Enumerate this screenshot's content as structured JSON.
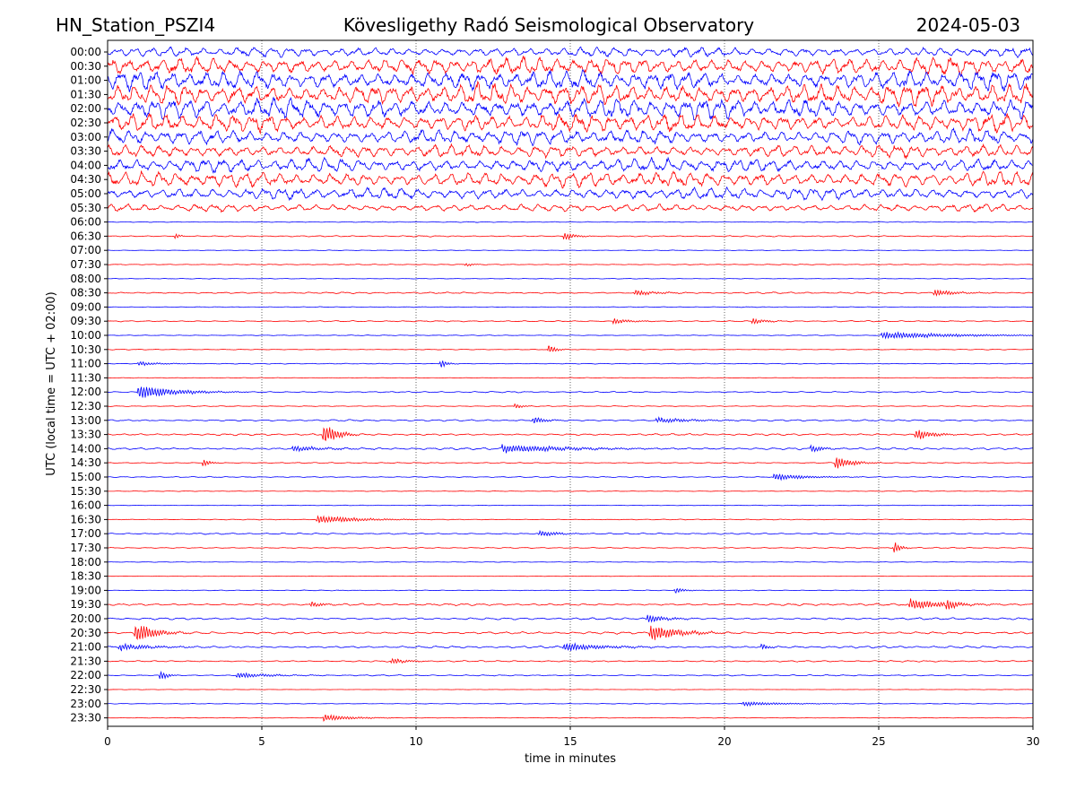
{
  "header": {
    "station": "HN_Station_PSZI4",
    "title": "Kövesligethy Radó Seismological Observatory",
    "date": "2024-05-03"
  },
  "chart_data": {
    "type": "line",
    "chart_kind": "helicorder",
    "xlabel": "time in minutes",
    "ylabel": "UTC (local time = UTC + 02:00)",
    "xlim": [
      0,
      30
    ],
    "x_ticks": [
      0,
      5,
      10,
      15,
      20,
      25,
      30
    ],
    "x_tick_labels": [
      "0",
      "5",
      "10",
      "15",
      "20",
      "25",
      "30"
    ],
    "vertical_gridlines": [
      5,
      10,
      15,
      20,
      25
    ],
    "grid_style": "dotted vertical",
    "row_colors": [
      "#0000ff",
      "#ff0000"
    ],
    "rows": [
      {
        "label": "00:00",
        "amplitude": 0.9,
        "events": []
      },
      {
        "label": "00:30",
        "amplitude": 1.6,
        "events": []
      },
      {
        "label": "01:00",
        "amplitude": 1.8,
        "events": []
      },
      {
        "label": "01:30",
        "amplitude": 2.0,
        "events": []
      },
      {
        "label": "02:00",
        "amplitude": 1.9,
        "events": []
      },
      {
        "label": "02:30",
        "amplitude": 1.7,
        "events": []
      },
      {
        "label": "03:00",
        "amplitude": 1.4,
        "events": []
      },
      {
        "label": "03:30",
        "amplitude": 1.2,
        "events": []
      },
      {
        "label": "04:00",
        "amplitude": 1.3,
        "events": []
      },
      {
        "label": "04:30",
        "amplitude": 1.4,
        "events": []
      },
      {
        "label": "05:00",
        "amplitude": 1.1,
        "events": []
      },
      {
        "label": "05:30",
        "amplitude": 0.7,
        "events": []
      },
      {
        "label": "06:00",
        "amplitude": 0.08,
        "events": []
      },
      {
        "label": "06:30",
        "amplitude": 0.12,
        "events": [
          {
            "t": 2.2,
            "a": 0.6,
            "d": 0.1
          },
          {
            "t": 14.8,
            "a": 0.7,
            "d": 0.3
          }
        ]
      },
      {
        "label": "07:00",
        "amplitude": 0.06,
        "events": []
      },
      {
        "label": "07:30",
        "amplitude": 0.08,
        "events": [
          {
            "t": 11.6,
            "a": 0.3,
            "d": 0.2
          }
        ]
      },
      {
        "label": "08:00",
        "amplitude": 0.06,
        "events": []
      },
      {
        "label": "08:30",
        "amplitude": 0.15,
        "events": [
          {
            "t": 17.1,
            "a": 0.4,
            "d": 0.6
          },
          {
            "t": 26.8,
            "a": 0.5,
            "d": 0.6
          }
        ]
      },
      {
        "label": "09:00",
        "amplitude": 0.07,
        "events": []
      },
      {
        "label": "09:30",
        "amplitude": 0.12,
        "events": [
          {
            "t": 16.4,
            "a": 0.4,
            "d": 0.5
          },
          {
            "t": 20.9,
            "a": 0.4,
            "d": 0.4
          }
        ]
      },
      {
        "label": "10:00",
        "amplitude": 0.07,
        "events": [
          {
            "t": 25.1,
            "a": 0.5,
            "d": 2.2
          }
        ]
      },
      {
        "label": "10:30",
        "amplitude": 0.07,
        "events": [
          {
            "t": 14.3,
            "a": 0.7,
            "d": 0.2
          }
        ]
      },
      {
        "label": "11:00",
        "amplitude": 0.08,
        "events": [
          {
            "t": 1.0,
            "a": 0.3,
            "d": 0.6
          },
          {
            "t": 10.8,
            "a": 0.6,
            "d": 0.2
          }
        ]
      },
      {
        "label": "11:30",
        "amplitude": 0.06,
        "events": []
      },
      {
        "label": "12:00",
        "amplitude": 0.12,
        "events": [
          {
            "t": 1.0,
            "a": 0.9,
            "d": 1.2
          }
        ]
      },
      {
        "label": "12:30",
        "amplitude": 0.08,
        "events": [
          {
            "t": 13.2,
            "a": 0.4,
            "d": 0.2
          }
        ]
      },
      {
        "label": "13:00",
        "amplitude": 0.16,
        "events": [
          {
            "t": 13.8,
            "a": 0.5,
            "d": 0.4
          },
          {
            "t": 17.8,
            "a": 0.4,
            "d": 1.0
          }
        ]
      },
      {
        "label": "13:30",
        "amplitude": 0.18,
        "events": [
          {
            "t": 7.0,
            "a": 1.6,
            "d": 0.4
          },
          {
            "t": 26.2,
            "a": 0.8,
            "d": 0.5
          }
        ]
      },
      {
        "label": "14:00",
        "amplitude": 0.2,
        "events": [
          {
            "t": 6.0,
            "a": 0.4,
            "d": 1.0
          },
          {
            "t": 12.8,
            "a": 0.6,
            "d": 2.0
          },
          {
            "t": 22.8,
            "a": 0.5,
            "d": 0.4
          }
        ]
      },
      {
        "label": "14:30",
        "amplitude": 0.1,
        "events": [
          {
            "t": 3.1,
            "a": 0.6,
            "d": 0.2
          },
          {
            "t": 23.6,
            "a": 0.9,
            "d": 0.5
          }
        ]
      },
      {
        "label": "15:00",
        "amplitude": 0.1,
        "events": [
          {
            "t": 21.6,
            "a": 0.5,
            "d": 1.0
          }
        ]
      },
      {
        "label": "15:30",
        "amplitude": 0.06,
        "events": []
      },
      {
        "label": "16:00",
        "amplitude": 0.06,
        "events": []
      },
      {
        "label": "16:30",
        "amplitude": 0.08,
        "events": [
          {
            "t": 6.8,
            "a": 0.6,
            "d": 1.2
          }
        ]
      },
      {
        "label": "17:00",
        "amplitude": 0.14,
        "events": [
          {
            "t": 14.0,
            "a": 0.5,
            "d": 0.5
          }
        ]
      },
      {
        "label": "17:30",
        "amplitude": 0.1,
        "events": [
          {
            "t": 25.5,
            "a": 0.9,
            "d": 0.2
          }
        ]
      },
      {
        "label": "18:00",
        "amplitude": 0.05,
        "events": []
      },
      {
        "label": "18:30",
        "amplitude": 0.04,
        "events": []
      },
      {
        "label": "19:00",
        "amplitude": 0.07,
        "events": [
          {
            "t": 18.4,
            "a": 0.4,
            "d": 0.3
          }
        ]
      },
      {
        "label": "19:30",
        "amplitude": 0.2,
        "events": [
          {
            "t": 6.6,
            "a": 0.5,
            "d": 0.3
          },
          {
            "t": 26.0,
            "a": 0.8,
            "d": 1.0
          },
          {
            "t": 27.2,
            "a": 1.0,
            "d": 0.4
          }
        ]
      },
      {
        "label": "20:00",
        "amplitude": 0.2,
        "events": [
          {
            "t": 17.5,
            "a": 0.6,
            "d": 0.6
          }
        ]
      },
      {
        "label": "20:30",
        "amplitude": 0.22,
        "events": [
          {
            "t": 0.9,
            "a": 1.3,
            "d": 0.6
          },
          {
            "t": 17.6,
            "a": 1.2,
            "d": 0.8
          }
        ]
      },
      {
        "label": "21:00",
        "amplitude": 0.2,
        "events": [
          {
            "t": 0.4,
            "a": 0.5,
            "d": 1.0
          },
          {
            "t": 14.8,
            "a": 0.6,
            "d": 1.2
          },
          {
            "t": 21.2,
            "a": 0.6,
            "d": 0.2
          }
        ]
      },
      {
        "label": "21:30",
        "amplitude": 0.14,
        "events": [
          {
            "t": 9.2,
            "a": 0.5,
            "d": 0.4
          }
        ]
      },
      {
        "label": "22:00",
        "amplitude": 0.12,
        "events": [
          {
            "t": 1.7,
            "a": 0.8,
            "d": 0.2
          },
          {
            "t": 4.2,
            "a": 0.4,
            "d": 1.0
          }
        ]
      },
      {
        "label": "22:30",
        "amplitude": 0.04,
        "events": []
      },
      {
        "label": "23:00",
        "amplitude": 0.06,
        "events": [
          {
            "t": 20.6,
            "a": 0.3,
            "d": 1.2
          }
        ]
      },
      {
        "label": "23:30",
        "amplitude": 0.06,
        "events": [
          {
            "t": 7.0,
            "a": 0.5,
            "d": 0.8
          }
        ]
      }
    ]
  }
}
